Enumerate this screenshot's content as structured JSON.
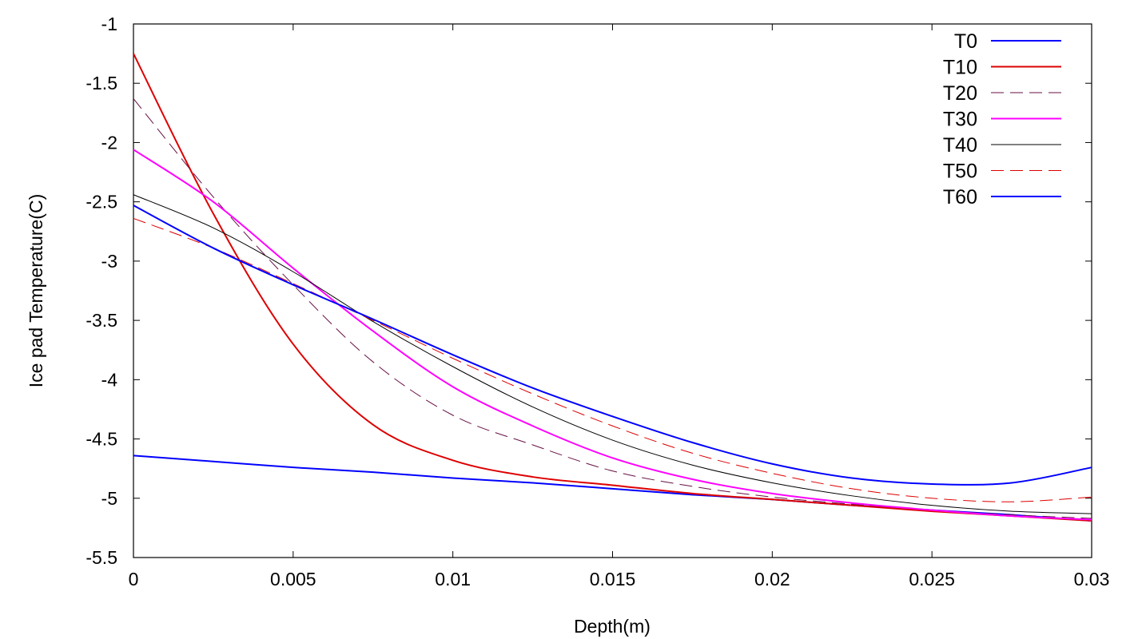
{
  "chart_data": {
    "type": "line",
    "xlabel": "Depth(m)",
    "ylabel": "Ice pad Temperature(C)",
    "xlim": [
      0,
      0.03
    ],
    "ylim": [
      -5.5,
      -1
    ],
    "xticks": [
      "0",
      "0.005",
      "0.01",
      "0.015",
      "0.02",
      "0.025",
      "0.03"
    ],
    "yticks": [
      "-1",
      "-1.5",
      "-2",
      "-2.5",
      "-3",
      "-3.5",
      "-4",
      "-4.5",
      "-5",
      "-5.5"
    ],
    "legend_position": "top-right",
    "grid": false,
    "x": [
      0,
      0.0025,
      0.005,
      0.0075,
      0.01,
      0.0125,
      0.015,
      0.0175,
      0.02,
      0.0225,
      0.025,
      0.0275,
      0.03
    ],
    "series": [
      {
        "name": "T0",
        "color": "#0000ff",
        "dash": "solid",
        "width": 2,
        "values": [
          -4.64,
          -4.69,
          -4.74,
          -4.78,
          -4.83,
          -4.87,
          -4.92,
          -4.97,
          -5.01,
          -5.06,
          -5.1,
          -5.14,
          -5.19
        ]
      },
      {
        "name": "T10",
        "color": "#dd0000",
        "dash": "solid",
        "width": 2,
        "values": [
          -1.25,
          -2.6,
          -3.7,
          -4.38,
          -4.68,
          -4.82,
          -4.89,
          -4.96,
          -5.01,
          -5.06,
          -5.11,
          -5.15,
          -5.19
        ]
      },
      {
        "name": "T20",
        "color": "#661144",
        "dash": "dashed",
        "width": 1,
        "values": [
          -1.63,
          -2.46,
          -3.2,
          -3.85,
          -4.3,
          -4.55,
          -4.77,
          -4.9,
          -4.99,
          -5.05,
          -5.1,
          -5.14,
          -5.17
        ]
      },
      {
        "name": "T30",
        "color": "#ff00ff",
        "dash": "solid",
        "width": 2,
        "values": [
          -2.06,
          -2.5,
          -3.06,
          -3.59,
          -4.06,
          -4.39,
          -4.66,
          -4.84,
          -4.96,
          -5.04,
          -5.1,
          -5.15,
          -5.18
        ]
      },
      {
        "name": "T40",
        "color": "#000000",
        "dash": "solid",
        "width": 1,
        "values": [
          -2.44,
          -2.72,
          -3.09,
          -3.51,
          -3.89,
          -4.23,
          -4.51,
          -4.72,
          -4.87,
          -4.98,
          -5.06,
          -5.11,
          -5.13
        ]
      },
      {
        "name": "T50",
        "color": "#dd0000",
        "dash": "dashed",
        "width": 1,
        "values": [
          -2.64,
          -2.89,
          -3.19,
          -3.5,
          -3.82,
          -4.12,
          -4.39,
          -4.62,
          -4.79,
          -4.92,
          -5.0,
          -5.03,
          -4.99
        ]
      },
      {
        "name": "T60",
        "color": "#0000ff",
        "dash": "solid",
        "width": 2,
        "values": [
          -2.53,
          -2.89,
          -3.2,
          -3.49,
          -3.79,
          -4.07,
          -4.31,
          -4.53,
          -4.71,
          -4.83,
          -4.88,
          -4.87,
          -4.74
        ]
      }
    ]
  }
}
